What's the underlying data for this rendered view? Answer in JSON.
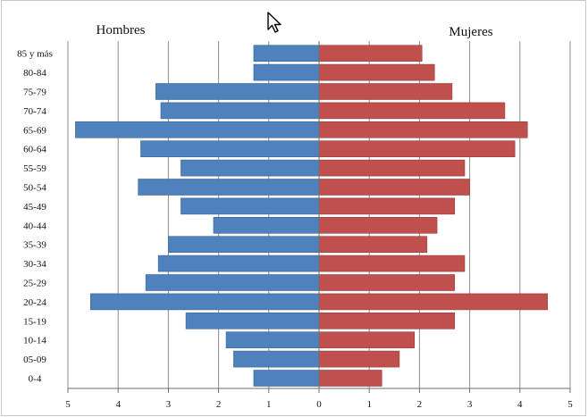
{
  "chart_data": {
    "type": "bar",
    "orientation": "horizontal",
    "layout": "population-pyramid",
    "left_title": "Hombres",
    "right_title": "Mujeres",
    "categories": [
      "85 y más",
      "80-84",
      "75-79",
      "70-74",
      "65-69",
      "60-64",
      "55-59",
      "50-54",
      "45-49",
      "40-44",
      "35-39",
      "30-34",
      "25-29",
      "20-24",
      "15-19",
      "10-14",
      "05-09",
      "0-4"
    ],
    "series": [
      {
        "name": "Hombres",
        "side": "left",
        "color": "#4f81bd",
        "values": [
          1.3,
          1.3,
          3.25,
          3.15,
          4.85,
          3.55,
          2.75,
          3.6,
          2.75,
          2.1,
          3.0,
          3.2,
          3.45,
          4.55,
          2.65,
          1.85,
          1.7,
          1.3
        ]
      },
      {
        "name": "Mujeres",
        "side": "right",
        "color": "#c0504d",
        "values": [
          2.05,
          2.3,
          2.65,
          3.7,
          4.15,
          3.9,
          2.9,
          3.0,
          2.7,
          2.35,
          2.15,
          2.9,
          2.7,
          4.55,
          2.7,
          1.9,
          1.6,
          1.25
        ]
      }
    ],
    "xlim": [
      -5,
      5
    ],
    "x_ticks": [
      -5,
      -4,
      -3,
      -2,
      -1,
      0,
      1,
      2,
      3,
      4,
      5
    ],
    "x_tick_labels": [
      "5",
      "4",
      "3",
      "2",
      "1",
      "0",
      "1",
      "2",
      "3",
      "4",
      "5"
    ],
    "grid": "vertical",
    "legend": "none"
  }
}
